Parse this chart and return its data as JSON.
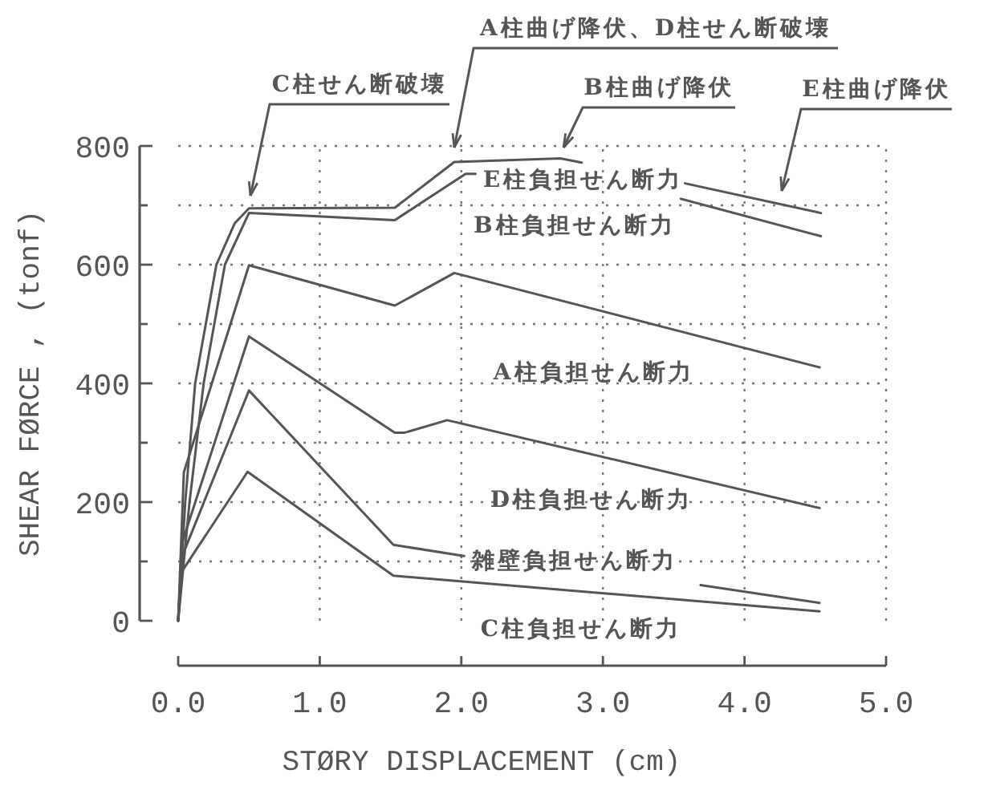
{
  "chart_data": {
    "type": "line",
    "xlabel": "STØRY DISPLACEMENT    (cm)",
    "ylabel": "SHEAR FØRCE ,  (tonf)",
    "xlim": [
      0,
      5
    ],
    "ylim": [
      0,
      800
    ],
    "xticks": [
      {
        "value": 0,
        "label": "0.0"
      },
      {
        "value": 1,
        "label": "1.0"
      },
      {
        "value": 2,
        "label": "2.0"
      },
      {
        "value": 3,
        "label": "3.0"
      },
      {
        "value": 4,
        "label": "4.0"
      },
      {
        "value": 5,
        "label": "5.0"
      }
    ],
    "yticks": [
      0,
      {
        "value": 100,
        "label": null
      },
      200,
      {
        "value": 300,
        "label": null
      },
      400,
      {
        "value": 500,
        "label": null
      },
      600,
      {
        "value": 700,
        "label": null
      },
      800
    ],
    "grid": true,
    "series": [
      {
        "name": "E柱負担せん断力",
        "color": "#555555",
        "x": [
          0,
          0.05,
          0.12,
          0.27,
          0.4,
          0.5,
          1.53,
          1.95,
          2.7,
          2.85,
          2.86,
          3.58,
          4.54
        ],
        "values": [
          0,
          200,
          400,
          600,
          670,
          695,
          696,
          773,
          779,
          772,
          null,
          737,
          687
        ]
      },
      {
        "name": "B柱負担せん断力",
        "color": "#555555",
        "x": [
          0,
          0.08,
          0.18,
          0.33,
          0.5,
          1.53,
          2.03,
          2.1,
          2.8,
          3.55,
          4.54
        ],
        "values": [
          0,
          200,
          400,
          600,
          687,
          675,
          753,
          753,
          null,
          711,
          648
        ]
      },
      {
        "name": "A柱負担せん断力",
        "color": "#555555",
        "x": [
          0,
          0.04,
          0.5,
          1.53,
          1.95,
          4.53
        ],
        "values": [
          0,
          250,
          599,
          531,
          586,
          427
        ]
      },
      {
        "name": "D柱負担せん断力",
        "color": "#555555",
        "x": [
          0,
          0.03,
          0.5,
          1.53,
          1.6,
          1.9,
          4.53
        ],
        "values": [
          0,
          133,
          479,
          317,
          317,
          338,
          190
        ]
      },
      {
        "name": "雑壁負担せん断力",
        "color": "#555555",
        "x": [
          0,
          0.03,
          0.5,
          1.52,
          2.02,
          2.8,
          3.69,
          4.53
        ],
        "values": [
          0,
          110,
          388,
          128,
          109,
          null,
          60,
          30
        ]
      },
      {
        "name": "C柱負担せん断力",
        "color": "#555555",
        "x": [
          0,
          0.02,
          0.49,
          1.52,
          4.53
        ],
        "values": [
          0,
          81,
          251,
          76,
          16
        ]
      }
    ],
    "annotations": [
      "C柱せん断破壊",
      "A柱曲げ降伏、D柱せん断破壊",
      "B柱曲げ降伏",
      "E柱曲げ降伏"
    ]
  }
}
